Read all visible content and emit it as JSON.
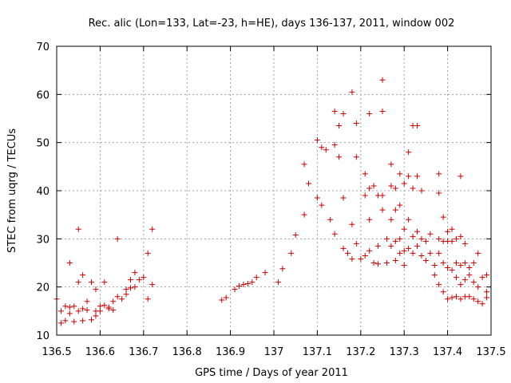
{
  "chart_data": {
    "type": "scatter",
    "title": "Rec. alic (Lon=133, Lat=-23, h=HE), days 136-137, 2011, window 002",
    "xlabel": "GPS time / Days of year 2011",
    "ylabel": "STEC from uqrg / TECUs",
    "xlim": [
      136.5,
      137.5
    ],
    "ylim": [
      10,
      70
    ],
    "x_ticks": [
      136.5,
      136.6,
      136.7,
      136.8,
      136.9,
      137.0,
      137.1,
      137.2,
      137.3,
      137.4,
      137.5
    ],
    "x_tick_labels": [
      "136.5",
      "136.6",
      "136.7",
      "136.8",
      "136.9",
      "137",
      "137.1",
      "137.2",
      "137.3",
      "137.4",
      "137.5"
    ],
    "y_ticks": [
      10,
      20,
      30,
      40,
      50,
      60,
      70
    ],
    "y_tick_labels": [
      "10",
      "20",
      "30",
      "40",
      "50",
      "60",
      "70"
    ],
    "grid": true,
    "marker": "plus",
    "marker_color": "#cc0000",
    "series": [
      {
        "points": [
          [
            136.5,
            17.5
          ],
          [
            136.51,
            12.5
          ],
          [
            136.51,
            15.0
          ],
          [
            136.52,
            13.0
          ],
          [
            136.52,
            16.0
          ],
          [
            136.53,
            14.5
          ],
          [
            136.53,
            15.8
          ],
          [
            136.53,
            25.0
          ],
          [
            136.54,
            16.0
          ],
          [
            136.54,
            12.8
          ],
          [
            136.55,
            21.0
          ],
          [
            136.55,
            15.0
          ],
          [
            136.55,
            32.0
          ],
          [
            136.56,
            13.0
          ],
          [
            136.56,
            15.5
          ],
          [
            136.56,
            22.5
          ],
          [
            136.57,
            17.0
          ],
          [
            136.57,
            15.2
          ],
          [
            136.58,
            13.2
          ],
          [
            136.58,
            21.0
          ],
          [
            136.59,
            15.0
          ],
          [
            136.59,
            19.5
          ],
          [
            136.59,
            14.0
          ],
          [
            136.6,
            16.0
          ],
          [
            136.6,
            15.0
          ],
          [
            136.61,
            21.0
          ],
          [
            136.61,
            16.2
          ],
          [
            136.62,
            15.5
          ],
          [
            136.62,
            15.8
          ],
          [
            136.63,
            15.2
          ],
          [
            136.63,
            17.0
          ],
          [
            136.64,
            18.0
          ],
          [
            136.64,
            30.0
          ],
          [
            136.65,
            17.5
          ],
          [
            136.66,
            18.5
          ],
          [
            136.66,
            19.5
          ],
          [
            136.67,
            19.8
          ],
          [
            136.67,
            21.5
          ],
          [
            136.68,
            23.0
          ],
          [
            136.68,
            20.0
          ],
          [
            136.69,
            21.5
          ],
          [
            136.7,
            22.0
          ],
          [
            136.71,
            17.5
          ],
          [
            136.71,
            27.0
          ],
          [
            136.72,
            20.5
          ],
          [
            136.72,
            32.0
          ]
        ]
      },
      {
        "points": [
          [
            136.88,
            17.3
          ],
          [
            136.89,
            17.8
          ],
          [
            136.91,
            19.5
          ],
          [
            136.92,
            20.2
          ],
          [
            136.93,
            20.5
          ],
          [
            136.94,
            20.7
          ],
          [
            136.95,
            21.0
          ],
          [
            136.96,
            22.0
          ],
          [
            136.98,
            23.0
          ],
          [
            137.01,
            21.0
          ],
          [
            137.02,
            23.8
          ],
          [
            137.04,
            27.0
          ],
          [
            137.05,
            30.8
          ],
          [
            137.07,
            35.0
          ],
          [
            137.07,
            45.5
          ],
          [
            137.08,
            41.5
          ],
          [
            137.1,
            38.5
          ],
          [
            137.1,
            50.5
          ],
          [
            137.11,
            49.0
          ],
          [
            137.11,
            37.0
          ],
          [
            137.12,
            48.5
          ],
          [
            137.13,
            34.0
          ],
          [
            137.14,
            49.5
          ],
          [
            137.14,
            56.5
          ],
          [
            137.14,
            31.0
          ],
          [
            137.15,
            53.5
          ],
          [
            137.15,
            47.0
          ],
          [
            137.16,
            28.0
          ],
          [
            137.16,
            56.0
          ],
          [
            137.16,
            38.5
          ],
          [
            137.17,
            27.0
          ],
          [
            137.18,
            60.5
          ],
          [
            137.18,
            33.0
          ],
          [
            137.18,
            25.8
          ],
          [
            137.19,
            54.0
          ],
          [
            137.19,
            47.0
          ],
          [
            137.19,
            29.0
          ],
          [
            137.2,
            25.8
          ],
          [
            137.21,
            43.5
          ],
          [
            137.21,
            39.0
          ],
          [
            137.21,
            26.5
          ],
          [
            137.22,
            56.0
          ],
          [
            137.22,
            40.5
          ],
          [
            137.22,
            34.0
          ],
          [
            137.22,
            27.5
          ],
          [
            137.23,
            25.0
          ],
          [
            137.23,
            41.0
          ],
          [
            137.24,
            39.0
          ],
          [
            137.24,
            28.5
          ],
          [
            137.24,
            24.8
          ],
          [
            137.25,
            63.0
          ],
          [
            137.25,
            56.5
          ],
          [
            137.25,
            39.0
          ],
          [
            137.25,
            36.0
          ],
          [
            137.26,
            30.0
          ],
          [
            137.26,
            25.0
          ],
          [
            137.27,
            45.5
          ],
          [
            137.27,
            41.0
          ],
          [
            137.27,
            34.0
          ],
          [
            137.27,
            28.5
          ],
          [
            137.28,
            40.5
          ],
          [
            137.28,
            36.0
          ],
          [
            137.28,
            29.5
          ],
          [
            137.28,
            25.5
          ],
          [
            137.29,
            43.5
          ],
          [
            137.29,
            37.0
          ],
          [
            137.29,
            30.0
          ],
          [
            137.29,
            27.0
          ],
          [
            137.3,
            41.5
          ],
          [
            137.3,
            32.0
          ],
          [
            137.3,
            27.5
          ],
          [
            137.3,
            24.5
          ],
          [
            137.31,
            48.0
          ],
          [
            137.31,
            43.0
          ],
          [
            137.31,
            34.0
          ],
          [
            137.31,
            28.0
          ],
          [
            137.32,
            53.5
          ],
          [
            137.32,
            40.5
          ],
          [
            137.32,
            30.5
          ],
          [
            137.32,
            27.0
          ],
          [
            137.33,
            53.5
          ],
          [
            137.33,
            43.0
          ],
          [
            137.33,
            31.5
          ],
          [
            137.33,
            28.5
          ],
          [
            137.34,
            40.0
          ],
          [
            137.34,
            30.0
          ],
          [
            137.34,
            26.5
          ],
          [
            137.35,
            29.5
          ],
          [
            137.35,
            25.5
          ],
          [
            137.36,
            31.0
          ],
          [
            137.36,
            27.0
          ],
          [
            137.37,
            24.5
          ],
          [
            137.37,
            22.5
          ],
          [
            137.38,
            43.5
          ],
          [
            137.38,
            39.5
          ],
          [
            137.38,
            30.0
          ],
          [
            137.38,
            27.0
          ],
          [
            137.38,
            20.5
          ],
          [
            137.39,
            34.5
          ],
          [
            137.39,
            29.5
          ],
          [
            137.39,
            25.0
          ],
          [
            137.39,
            19.0
          ],
          [
            137.4,
            31.5
          ],
          [
            137.4,
            29.5
          ],
          [
            137.4,
            24.0
          ],
          [
            137.4,
            17.5
          ],
          [
            137.41,
            32.0
          ],
          [
            137.41,
            29.5
          ],
          [
            137.41,
            23.5
          ],
          [
            137.41,
            17.8
          ],
          [
            137.42,
            30.0
          ],
          [
            137.42,
            25.0
          ],
          [
            137.42,
            22.0
          ],
          [
            137.42,
            18.0
          ],
          [
            137.43,
            43.0
          ],
          [
            137.43,
            30.5
          ],
          [
            137.43,
            24.5
          ],
          [
            137.43,
            20.5
          ],
          [
            137.43,
            17.5
          ],
          [
            137.44,
            29.0
          ],
          [
            137.44,
            25.0
          ],
          [
            137.44,
            21.5
          ],
          [
            137.44,
            18.0
          ],
          [
            137.45,
            24.0
          ],
          [
            137.45,
            22.5
          ],
          [
            137.45,
            18.0
          ],
          [
            137.46,
            25.0
          ],
          [
            137.46,
            21.0
          ],
          [
            137.46,
            17.5
          ],
          [
            137.47,
            27.0
          ],
          [
            137.47,
            20.0
          ],
          [
            137.47,
            17.0
          ],
          [
            137.48,
            22.0
          ],
          [
            137.48,
            16.5
          ],
          [
            137.49,
            22.5
          ],
          [
            137.49,
            19.0
          ],
          [
            137.49,
            17.8
          ]
        ]
      }
    ]
  }
}
